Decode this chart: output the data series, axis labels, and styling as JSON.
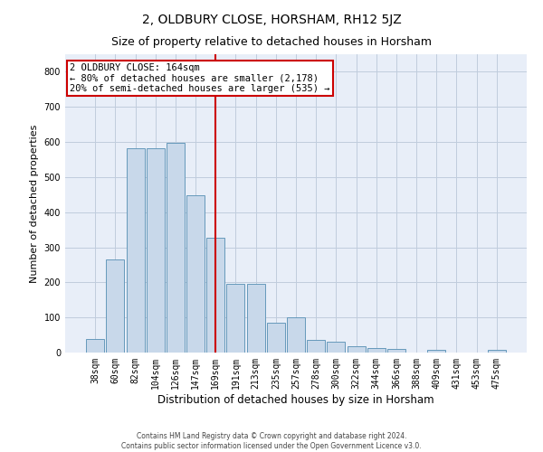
{
  "title": "2, OLDBURY CLOSE, HORSHAM, RH12 5JZ",
  "subtitle": "Size of property relative to detached houses in Horsham",
  "xlabel": "Distribution of detached houses by size in Horsham",
  "ylabel": "Number of detached properties",
  "footer_line1": "Contains HM Land Registry data © Crown copyright and database right 2024.",
  "footer_line2": "Contains public sector information licensed under the Open Government Licence v3.0.",
  "categories": [
    "38sqm",
    "60sqm",
    "82sqm",
    "104sqm",
    "126sqm",
    "147sqm",
    "169sqm",
    "191sqm",
    "213sqm",
    "235sqm",
    "257sqm",
    "278sqm",
    "300sqm",
    "322sqm",
    "344sqm",
    "366sqm",
    "388sqm",
    "409sqm",
    "431sqm",
    "453sqm",
    "475sqm"
  ],
  "values": [
    38,
    265,
    582,
    582,
    598,
    447,
    328,
    195,
    195,
    86,
    100,
    35,
    30,
    17,
    13,
    11,
    0,
    7,
    0,
    0,
    7
  ],
  "bar_color": "#c8d8ea",
  "bar_edge_color": "#6699bb",
  "highlight_color": "#cc0000",
  "vline_x": 6.0,
  "annotation_text": "2 OLDBURY CLOSE: 164sqm\n← 80% of detached houses are smaller (2,178)\n20% of semi-detached houses are larger (535) →",
  "annotation_box_color": "white",
  "annotation_box_edge_color": "#cc0000",
  "ylim": [
    0,
    850
  ],
  "yticks": [
    0,
    100,
    200,
    300,
    400,
    500,
    600,
    700,
    800
  ],
  "grid_color": "#c0ccdd",
  "bg_color": "#e8eef8",
  "title_fontsize": 10,
  "subtitle_fontsize": 9,
  "tick_fontsize": 7,
  "ylabel_fontsize": 8,
  "xlabel_fontsize": 8.5,
  "footer_fontsize": 5.5,
  "annot_fontsize": 7.5
}
